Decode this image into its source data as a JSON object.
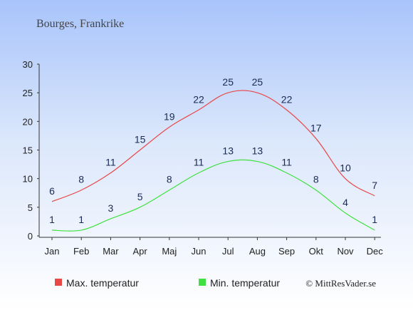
{
  "chart_data": {
    "type": "line",
    "title": "Bourges, Frankrike",
    "categories": [
      "Jan",
      "Feb",
      "Mar",
      "Apr",
      "Maj",
      "Jun",
      "Jul",
      "Aug",
      "Sep",
      "Okt",
      "Nov",
      "Dec"
    ],
    "series": [
      {
        "name": "Max. temperatur",
        "color": "#e84848",
        "values": [
          6,
          8,
          11,
          15,
          19,
          22,
          25,
          25,
          22,
          17,
          10,
          7
        ]
      },
      {
        "name": "Min. temperatur",
        "color": "#3fe03f",
        "values": [
          1,
          1,
          3,
          5,
          8,
          11,
          13,
          13,
          11,
          8,
          4,
          1
        ]
      }
    ],
    "yticks": [
      0,
      5,
      10,
      15,
      20,
      25,
      30
    ],
    "ylim": [
      0,
      30
    ],
    "grid": false,
    "legend_position": "bottom-left",
    "copyright": "© MittResVader.se"
  }
}
